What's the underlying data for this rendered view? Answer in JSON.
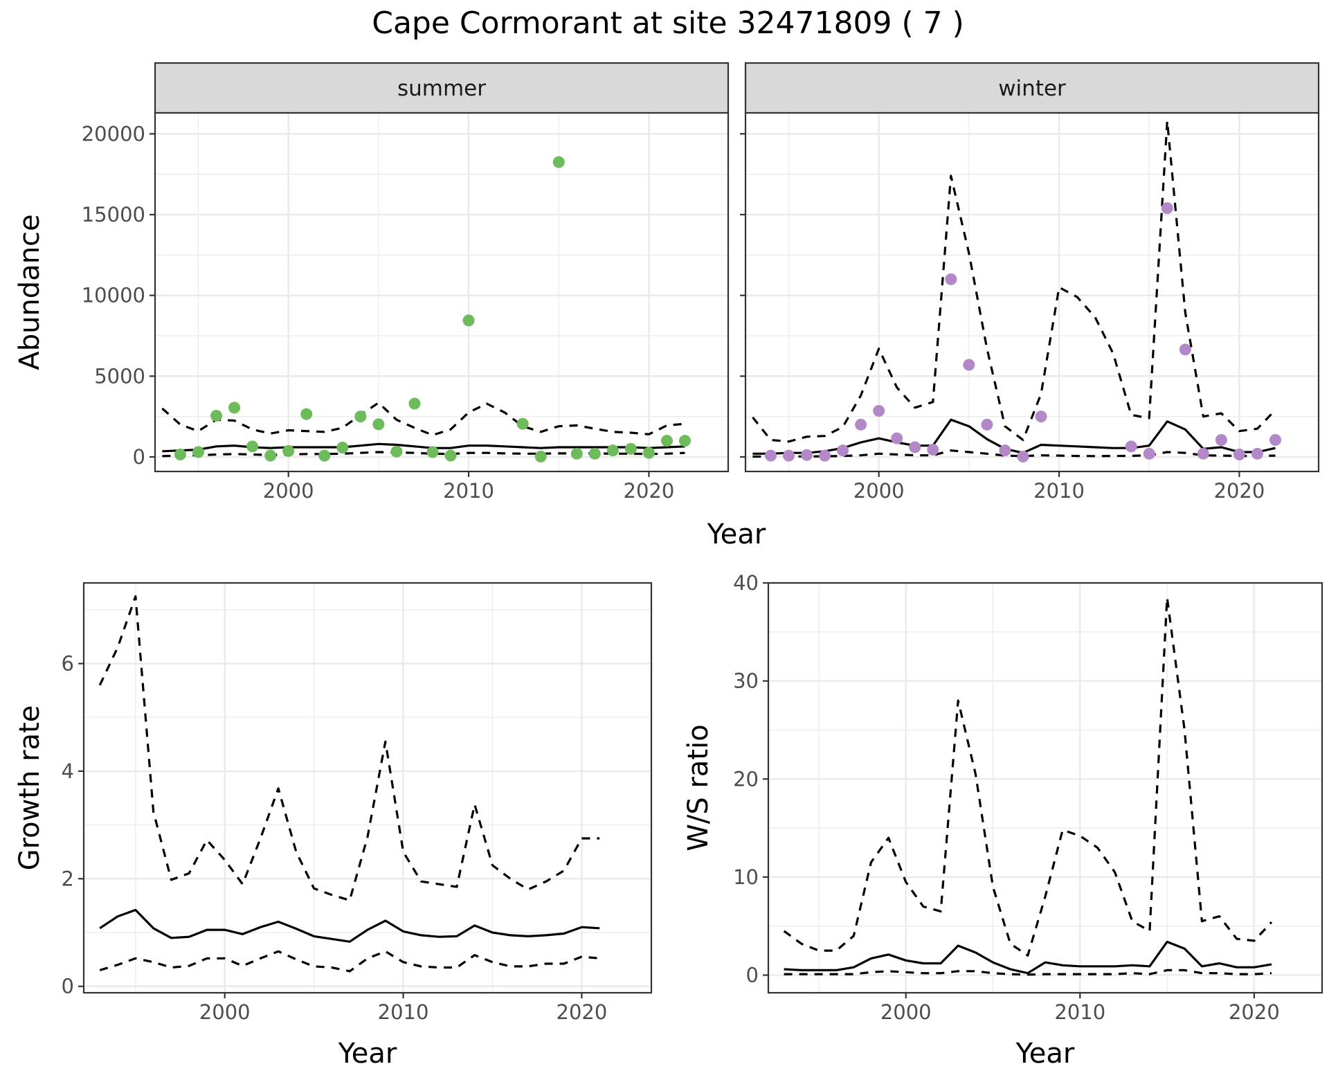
{
  "title": "Cape Cormorant at site 32471809 ( 7 )",
  "colors": {
    "summer_points": "#6dbb5a",
    "winter_points": "#b388c9"
  },
  "chart_data": [
    {
      "id": "abundance",
      "type": "line",
      "facets": [
        "summer",
        "winter"
      ],
      "xlabel": "Year",
      "ylabel": "Abundance",
      "xlim": [
        1992.6,
        2024.4
      ],
      "ylim": [
        -900,
        21300
      ],
      "xticks": [
        2000,
        2010,
        2020
      ],
      "yticks": [
        0,
        5000,
        10000,
        15000,
        20000
      ],
      "summer": {
        "points": {
          "x": [
            1994,
            1995,
            1996,
            1997,
            1998,
            1999,
            2000,
            2001,
            2002,
            2003,
            2004,
            2005,
            2006,
            2007,
            2008,
            2009,
            2010,
            2013,
            2014,
            2015,
            2016,
            2017,
            2018,
            2019,
            2020,
            2021,
            2022
          ],
          "y": [
            150,
            300,
            2550,
            3050,
            650,
            80,
            370,
            2650,
            80,
            580,
            2500,
            2020,
            330,
            3300,
            300,
            80,
            8450,
            2050,
            20,
            18250,
            200,
            200,
            400,
            500,
            250,
            1000,
            1000
          ]
        },
        "line_x": [
          1993,
          1994,
          1995,
          1996,
          1997,
          1998,
          1999,
          2000,
          2001,
          2002,
          2003,
          2004,
          2005,
          2006,
          2007,
          2008,
          2009,
          2010,
          2011,
          2012,
          2013,
          2014,
          2015,
          2016,
          2017,
          2018,
          2019,
          2020,
          2021,
          2022
        ],
        "estimate": [
          350,
          400,
          450,
          650,
          700,
          600,
          550,
          600,
          600,
          600,
          600,
          700,
          800,
          750,
          650,
          550,
          550,
          700,
          700,
          650,
          600,
          550,
          600,
          600,
          600,
          600,
          600,
          550,
          600,
          650
        ],
        "lower": [
          50,
          80,
          100,
          150,
          180,
          150,
          120,
          150,
          180,
          180,
          200,
          250,
          300,
          280,
          250,
          200,
          180,
          250,
          250,
          220,
          200,
          200,
          220,
          220,
          220,
          200,
          200,
          180,
          200,
          250
        ],
        "upper": [
          3000,
          2000,
          1600,
          2300,
          2250,
          1700,
          1450,
          1650,
          1600,
          1550,
          1800,
          2600,
          3350,
          2300,
          1800,
          1350,
          1700,
          2750,
          3300,
          2750,
          1900,
          1550,
          1900,
          1950,
          1750,
          1550,
          1500,
          1400,
          1950,
          2050
        ]
      },
      "winter": {
        "points": {
          "x": [
            1994,
            1995,
            1996,
            1997,
            1998,
            1999,
            2000,
            2001,
            2002,
            2003,
            2004,
            2005,
            2006,
            2007,
            2008,
            2009,
            2014,
            2015,
            2016,
            2017,
            2018,
            2019,
            2020,
            2021,
            2022
          ],
          "y": [
            80,
            80,
            120,
            80,
            400,
            2000,
            2850,
            1150,
            600,
            450,
            11000,
            5700,
            2000,
            400,
            20,
            2500,
            650,
            200,
            15400,
            6650,
            200,
            1050,
            150,
            200,
            1050
          ]
        },
        "line_x": [
          1993,
          1994,
          1995,
          1996,
          1997,
          1998,
          1999,
          2000,
          2001,
          2002,
          2003,
          2004,
          2005,
          2006,
          2007,
          2008,
          2009,
          2010,
          2011,
          2012,
          2013,
          2014,
          2015,
          2016,
          2017,
          2018,
          2019,
          2020,
          2021,
          2022
        ],
        "estimate": [
          200,
          200,
          250,
          250,
          350,
          550,
          900,
          1150,
          900,
          700,
          700,
          2300,
          1900,
          1100,
          500,
          250,
          750,
          700,
          650,
          600,
          550,
          550,
          700,
          2200,
          1700,
          500,
          600,
          300,
          300,
          550
        ],
        "lower": [
          20,
          20,
          30,
          30,
          40,
          60,
          100,
          200,
          150,
          100,
          100,
          400,
          300,
          200,
          80,
          50,
          100,
          80,
          60,
          50,
          60,
          70,
          100,
          300,
          250,
          100,
          80,
          60,
          60,
          80
        ],
        "upper": [
          2450,
          1050,
          950,
          1250,
          1300,
          1850,
          3800,
          6700,
          4300,
          3050,
          3400,
          17400,
          12600,
          6700,
          1900,
          1050,
          3900,
          10500,
          9900,
          8650,
          6400,
          2600,
          2400,
          20800,
          8950,
          2500,
          2700,
          1600,
          1750,
          2900
        ]
      }
    },
    {
      "id": "growth",
      "type": "line",
      "xlabel": "Year",
      "ylabel": "Growth rate",
      "xlim": [
        1992.1,
        2023.9
      ],
      "ylim": [
        -0.12,
        7.5
      ],
      "xticks": [
        2000,
        2010,
        2020
      ],
      "yticks": [
        0,
        2,
        4,
        6
      ],
      "x": [
        1993,
        1994,
        1995,
        1996,
        1997,
        1998,
        1999,
        2000,
        2001,
        2002,
        2003,
        2004,
        2005,
        2006,
        2007,
        2008,
        2009,
        2010,
        2011,
        2012,
        2013,
        2014,
        2015,
        2016,
        2017,
        2018,
        2019,
        2020,
        2021
      ],
      "estimate": [
        1.08,
        1.3,
        1.42,
        1.08,
        0.9,
        0.92,
        1.05,
        1.05,
        0.97,
        1.1,
        1.2,
        1.07,
        0.93,
        0.88,
        0.83,
        1.05,
        1.22,
        1.02,
        0.95,
        0.92,
        0.93,
        1.13,
        1.0,
        0.95,
        0.93,
        0.95,
        0.98,
        1.1,
        1.08
      ],
      "lower": [
        0.3,
        0.4,
        0.52,
        0.45,
        0.35,
        0.38,
        0.52,
        0.52,
        0.38,
        0.52,
        0.65,
        0.5,
        0.37,
        0.35,
        0.28,
        0.52,
        0.65,
        0.45,
        0.37,
        0.35,
        0.35,
        0.58,
        0.45,
        0.37,
        0.37,
        0.42,
        0.42,
        0.55,
        0.52
      ],
      "upper": [
        5.6,
        6.3,
        7.25,
        3.25,
        1.98,
        2.1,
        2.72,
        2.35,
        1.9,
        2.75,
        3.68,
        2.5,
        1.82,
        1.7,
        1.6,
        2.78,
        4.55,
        2.5,
        1.95,
        1.9,
        1.85,
        3.38,
        2.25,
        2.0,
        1.8,
        1.95,
        2.15,
        2.75,
        2.75
      ]
    },
    {
      "id": "ws_ratio",
      "type": "line",
      "xlabel": "Year",
      "ylabel": "W/S ratio",
      "xlim": [
        1992.1,
        2023.9
      ],
      "ylim": [
        -1.8,
        40
      ],
      "xticks": [
        2000,
        2010,
        2020
      ],
      "yticks": [
        0,
        10,
        20,
        30,
        40
      ],
      "x": [
        1993,
        1994,
        1995,
        1996,
        1997,
        1998,
        1999,
        2000,
        2001,
        2002,
        2003,
        2004,
        2005,
        2006,
        2007,
        2008,
        2009,
        2010,
        2011,
        2012,
        2013,
        2014,
        2015,
        2016,
        2017,
        2018,
        2019,
        2020,
        2021
      ],
      "estimate": [
        0.6,
        0.5,
        0.5,
        0.5,
        0.8,
        1.7,
        2.1,
        1.5,
        1.2,
        1.2,
        3.0,
        2.3,
        1.3,
        0.6,
        0.2,
        1.3,
        1.0,
        0.9,
        0.9,
        0.9,
        1.0,
        0.9,
        3.4,
        2.7,
        0.9,
        1.2,
        0.8,
        0.8,
        1.1
      ],
      "lower": [
        0.1,
        0.1,
        0.1,
        0.1,
        0.1,
        0.3,
        0.4,
        0.3,
        0.2,
        0.2,
        0.4,
        0.4,
        0.2,
        0.1,
        0.05,
        0.1,
        0.1,
        0.1,
        0.1,
        0.1,
        0.2,
        0.1,
        0.5,
        0.5,
        0.2,
        0.2,
        0.1,
        0.1,
        0.2
      ],
      "upper": [
        4.5,
        3.2,
        2.5,
        2.5,
        4.0,
        11.5,
        14.0,
        9.5,
        7.0,
        6.5,
        28.0,
        20.5,
        9.0,
        3.2,
        2.0,
        8.0,
        14.8,
        14.2,
        13.0,
        10.5,
        5.5,
        4.5,
        38.5,
        25.0,
        5.5,
        6.0,
        3.7,
        3.5,
        5.4
      ]
    }
  ]
}
